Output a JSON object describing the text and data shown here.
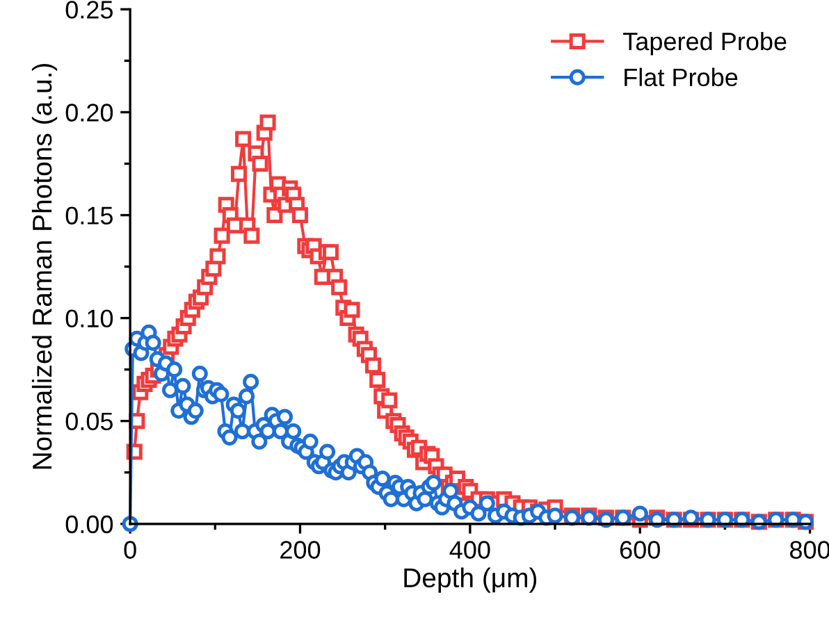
{
  "chart_data": {
    "type": "line",
    "xlabel": "Depth (μm)",
    "ylabel": "Normalized Raman Photons (a.u.)",
    "xlim": [
      0,
      800
    ],
    "ylim": [
      0,
      0.25
    ],
    "xticks": [
      0,
      200,
      400,
      600,
      800
    ],
    "yticks": [
      {
        "value": 0,
        "label": "0.00"
      },
      {
        "value": 0.05,
        "label": "0.05"
      },
      {
        "value": 0.1,
        "label": "0.10"
      },
      {
        "value": 0.15,
        "label": "0.15"
      },
      {
        "value": 0.2,
        "label": "0.20"
      },
      {
        "value": 0.25,
        "label": "0.25"
      }
    ],
    "grid": false,
    "legend": "top right",
    "line_style": "solid",
    "series": [
      {
        "name": "Tapered Probe",
        "color": "#f03c3c",
        "marker": "square",
        "x": [
          5,
          8,
          12,
          17,
          22,
          27,
          33,
          43,
          48,
          53,
          58,
          63,
          68,
          73,
          78,
          83,
          88,
          93,
          98,
          103,
          108,
          113,
          118,
          123,
          128,
          133,
          138,
          143,
          148,
          153,
          158,
          162,
          166,
          170,
          174,
          178,
          183,
          188,
          192,
          196,
          200,
          206,
          211,
          216,
          221,
          226,
          231,
          236,
          241,
          246,
          251,
          256,
          261,
          266,
          271,
          276,
          281,
          286,
          291,
          296,
          300,
          305,
          310,
          315,
          320,
          325,
          330,
          335,
          340,
          345,
          350,
          355,
          360,
          365,
          370,
          375,
          380,
          385,
          390,
          395,
          400,
          410,
          420,
          430,
          440,
          450,
          460,
          470,
          480,
          490,
          500,
          520,
          540,
          560,
          580,
          600,
          620,
          640,
          660,
          680,
          700,
          720,
          740,
          760,
          780,
          795
        ],
        "values": [
          0.035,
          0.05,
          0.064,
          0.068,
          0.07,
          0.072,
          0.075,
          0.082,
          0.086,
          0.09,
          0.092,
          0.096,
          0.1,
          0.104,
          0.108,
          0.11,
          0.115,
          0.12,
          0.124,
          0.13,
          0.14,
          0.155,
          0.15,
          0.145,
          0.17,
          0.187,
          0.145,
          0.14,
          0.18,
          0.175,
          0.19,
          0.195,
          0.16,
          0.15,
          0.165,
          0.16,
          0.155,
          0.163,
          0.16,
          0.155,
          0.15,
          0.135,
          0.133,
          0.135,
          0.13,
          0.12,
          0.132,
          0.132,
          0.12,
          0.115,
          0.105,
          0.1,
          0.104,
          0.092,
          0.09,
          0.085,
          0.082,
          0.077,
          0.07,
          0.062,
          0.055,
          0.06,
          0.05,
          0.048,
          0.044,
          0.042,
          0.04,
          0.036,
          0.037,
          0.03,
          0.034,
          0.033,
          0.028,
          0.024,
          0.024,
          0.018,
          0.02,
          0.022,
          0.015,
          0.018,
          0.016,
          0.012,
          0.012,
          0.01,
          0.012,
          0.01,
          0.008,
          0.008,
          0.006,
          0.007,
          0.008,
          0.004,
          0.004,
          0.003,
          0.003,
          0.002,
          0.003,
          0.002,
          0.002,
          0.002,
          0.002,
          0.002,
          0.001,
          0.002,
          0.002,
          0.001
        ]
      },
      {
        "name": "Flat Probe",
        "color": "#1f6fd6",
        "marker": "circle",
        "x": [
          0,
          3,
          8,
          13,
          18,
          22,
          27,
          32,
          37,
          42,
          47,
          52,
          57,
          62,
          67,
          72,
          77,
          82,
          87,
          92,
          97,
          102,
          107,
          112,
          117,
          122,
          127,
          132,
          137,
          142,
          147,
          152,
          157,
          162,
          167,
          172,
          177,
          182,
          187,
          192,
          197,
          202,
          207,
          212,
          217,
          222,
          227,
          232,
          237,
          242,
          247,
          252,
          257,
          262,
          267,
          272,
          277,
          282,
          287,
          292,
          297,
          302,
          307,
          312,
          317,
          322,
          327,
          332,
          337,
          342,
          347,
          352,
          357,
          362,
          367,
          372,
          377,
          382,
          390,
          400,
          410,
          420,
          430,
          440,
          450,
          460,
          470,
          480,
          490,
          500,
          520,
          540,
          560,
          580,
          600,
          620,
          640,
          660,
          680,
          700,
          720,
          740,
          760,
          780,
          795
        ],
        "values": [
          0.0,
          0.085,
          0.09,
          0.083,
          0.088,
          0.093,
          0.088,
          0.08,
          0.073,
          0.078,
          0.065,
          0.075,
          0.055,
          0.067,
          0.058,
          0.052,
          0.055,
          0.073,
          0.065,
          0.066,
          0.062,
          0.065,
          0.063,
          0.045,
          0.042,
          0.058,
          0.055,
          0.045,
          0.062,
          0.069,
          0.045,
          0.04,
          0.048,
          0.045,
          0.053,
          0.05,
          0.045,
          0.052,
          0.04,
          0.045,
          0.038,
          0.037,
          0.035,
          0.04,
          0.03,
          0.028,
          0.03,
          0.035,
          0.026,
          0.025,
          0.028,
          0.03,
          0.025,
          0.03,
          0.033,
          0.028,
          0.03,
          0.025,
          0.02,
          0.018,
          0.022,
          0.015,
          0.012,
          0.02,
          0.018,
          0.012,
          0.018,
          0.015,
          0.01,
          0.015,
          0.012,
          0.018,
          0.02,
          0.01,
          0.008,
          0.012,
          0.016,
          0.01,
          0.006,
          0.008,
          0.005,
          0.01,
          0.004,
          0.006,
          0.004,
          0.003,
          0.004,
          0.006,
          0.003,
          0.004,
          0.003,
          0.003,
          0.002,
          0.003,
          0.005,
          0.002,
          0.002,
          0.003,
          0.002,
          0.002,
          0.002,
          0.001,
          0.002,
          0.002,
          0.001
        ]
      }
    ]
  }
}
